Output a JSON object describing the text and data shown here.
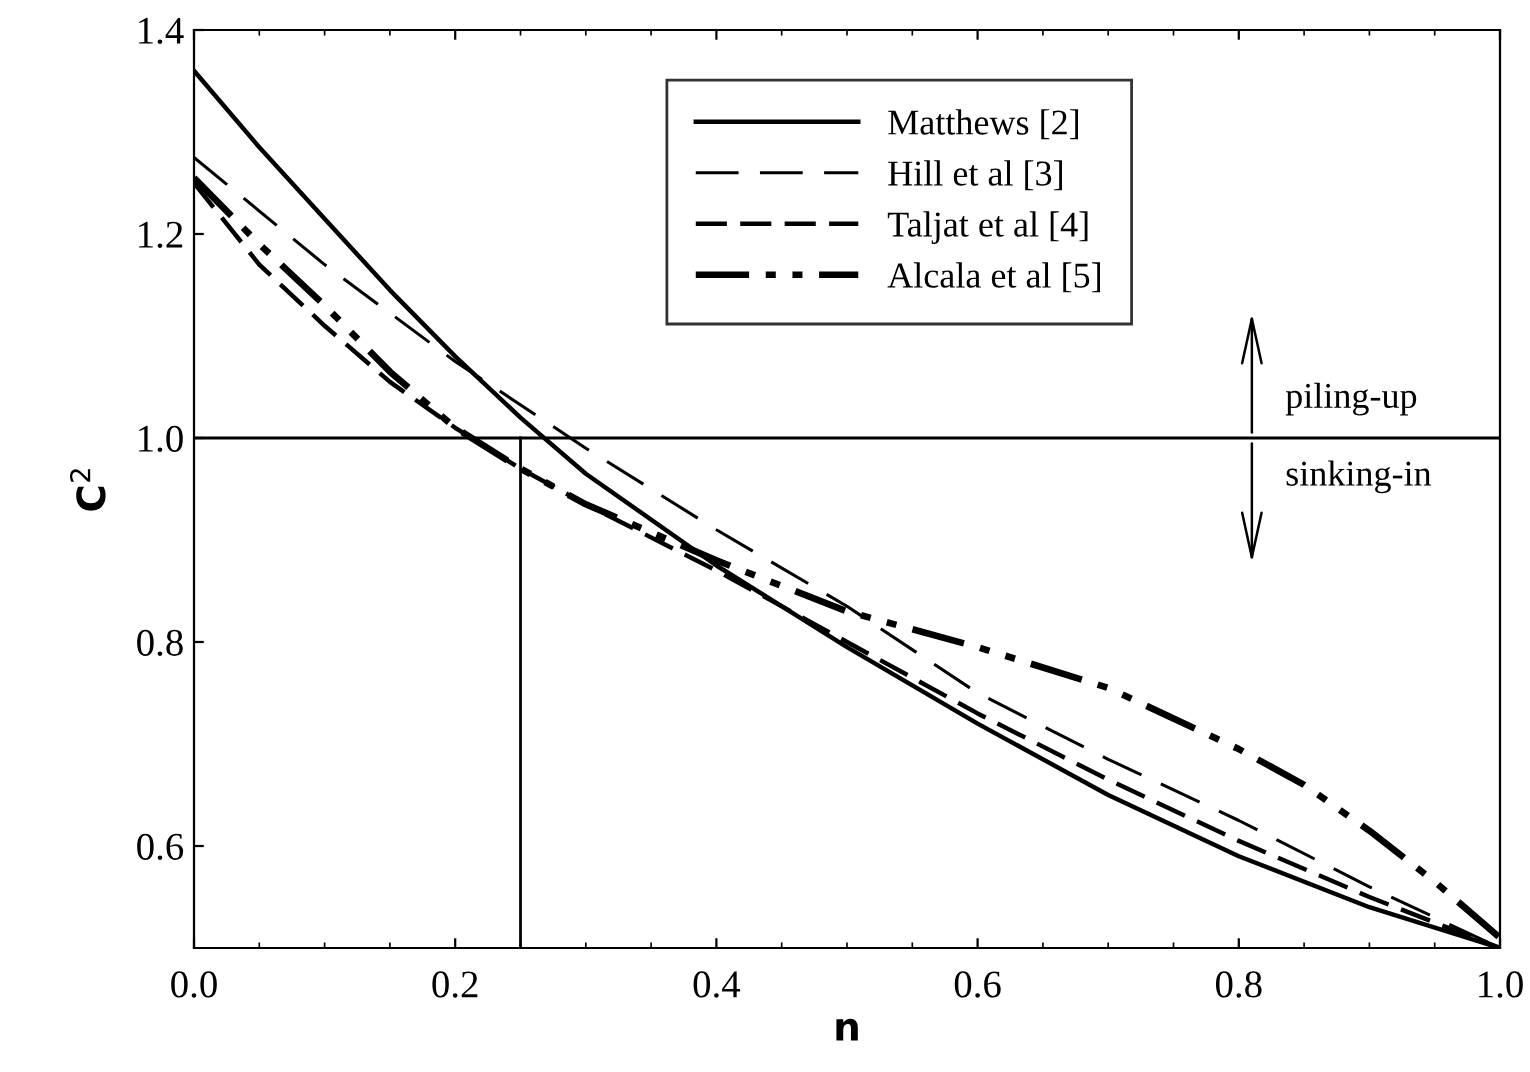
{
  "chart_data": {
    "type": "line",
    "xlabel": "n",
    "ylabel": "C$^{2}$",
    "xlim": [
      0,
      1
    ],
    "ylim": [
      0.5,
      1.4
    ],
    "xticks": [
      {
        "value": 0,
        "label": "0.0"
      },
      {
        "value": 0.2,
        "label": "0.2"
      },
      {
        "value": 0.4,
        "label": "0.4"
      },
      {
        "value": 0.6,
        "label": "0.6"
      },
      {
        "value": 0.8,
        "label": "0.8"
      },
      {
        "value": 1,
        "label": "1.0"
      }
    ],
    "yticks": [
      {
        "value": 0.6,
        "label": "0.6"
      },
      {
        "value": 0.8,
        "label": "0.8"
      },
      {
        "value": 1,
        "label": "1.0"
      },
      {
        "value": 1.2,
        "label": "1.2"
      },
      {
        "value": 1.4,
        "label": "1.4"
      }
    ],
    "grid": false,
    "legend": "top",
    "marker": "none",
    "series": [
      {
        "name": "Matthews [2]",
        "color": "#000000",
        "line_style": "solid",
        "x": [
          0,
          0.05,
          0.1,
          0.15,
          0.2,
          0.25,
          0.3,
          0.4,
          0.5,
          0.6,
          0.7,
          0.8,
          0.9,
          1.0
        ],
        "values": [
          1.36,
          1.285,
          1.215,
          1.145,
          1.08,
          1.02,
          0.965,
          0.875,
          0.795,
          0.72,
          0.65,
          0.59,
          0.54,
          0.5
        ]
      },
      {
        "name": "Hill et al [3]",
        "color": "#000000",
        "line_style": "longdash",
        "x": [
          0,
          0.1,
          0.2,
          0.3,
          0.4,
          0.5,
          0.6,
          0.7,
          0.8,
          0.9,
          1.0
        ],
        "values": [
          1.275,
          1.17,
          1.075,
          0.99,
          0.91,
          0.835,
          0.75,
          0.685,
          0.625,
          0.56,
          0.5
        ]
      },
      {
        "name": "Taljat et al [4]",
        "color": "#000000",
        "line_style": "dashed",
        "x": [
          0,
          0.05,
          0.1,
          0.15,
          0.2,
          0.25,
          0.3,
          0.4,
          0.5,
          0.6,
          0.7,
          0.8,
          0.9,
          1.0
        ],
        "values": [
          1.25,
          1.17,
          1.11,
          1.055,
          1.01,
          0.97,
          0.935,
          0.87,
          0.8,
          0.73,
          0.665,
          0.605,
          0.55,
          0.5
        ]
      },
      {
        "name": "Alcala et al [5]",
        "color": "#000000",
        "line_style": "dashdotdot",
        "x": [
          0,
          0.05,
          0.1,
          0.15,
          0.2,
          0.25,
          0.3,
          0.4,
          0.5,
          0.6,
          0.7,
          0.8,
          0.85,
          0.9,
          0.95,
          1.0
        ],
        "values": [
          1.255,
          1.19,
          1.13,
          1.065,
          1.01,
          0.97,
          0.935,
          0.88,
          0.83,
          0.795,
          0.755,
          0.695,
          0.66,
          0.615,
          0.565,
          0.51
        ]
      }
    ],
    "ref_lines": [
      {
        "axis": "y",
        "value": 1.0,
        "color": "#000000"
      },
      {
        "axis": "x",
        "value": 0.25,
        "color": "#000000"
      }
    ],
    "annotations": [
      {
        "text": "piling-up",
        "x": 0.81,
        "y": 1.0
      },
      {
        "text": "sinking-in",
        "x": 0.81,
        "y": 1.0
      }
    ]
  }
}
